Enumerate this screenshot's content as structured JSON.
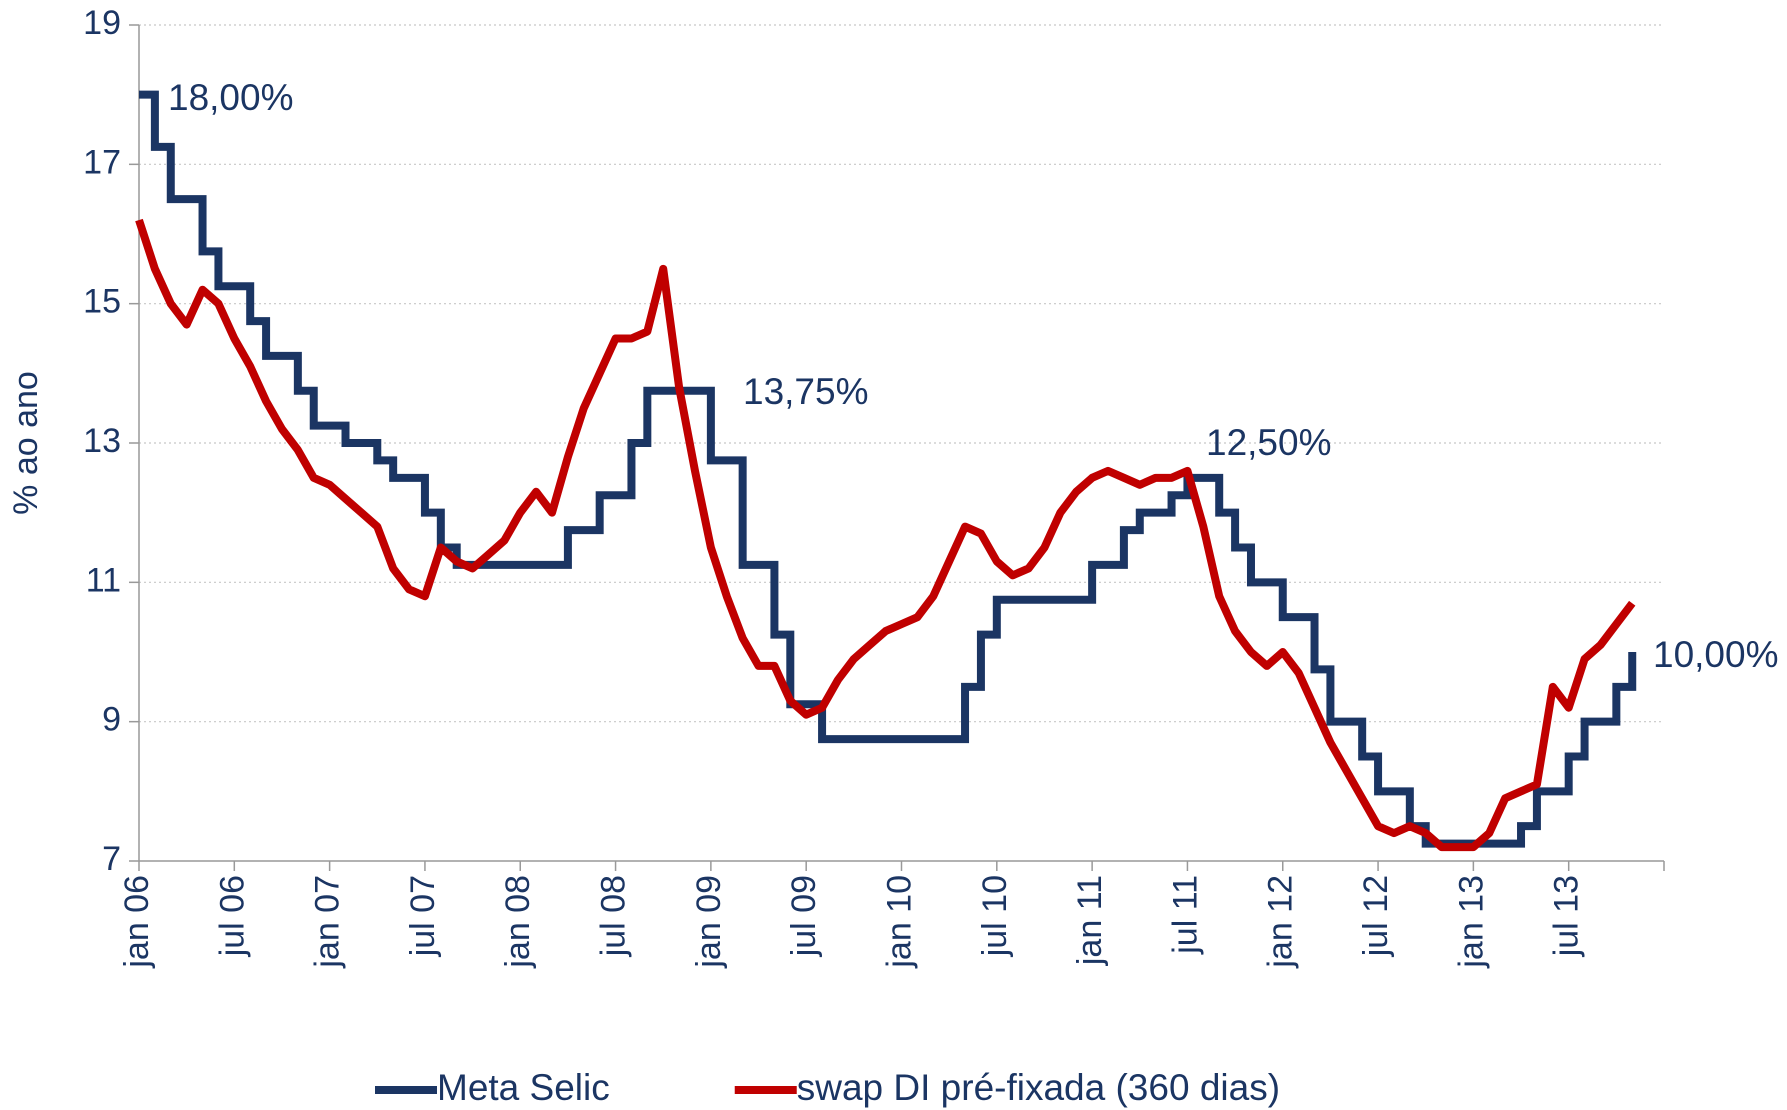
{
  "chart_data": {
    "type": "line",
    "y_label": "% ao ano",
    "categories": [
      "jan 06",
      null,
      null,
      null,
      null,
      null,
      "jul 06",
      null,
      null,
      null,
      null,
      null,
      "jan 07",
      null,
      null,
      null,
      null,
      null,
      "jul 07",
      null,
      null,
      null,
      null,
      null,
      "jan 08",
      null,
      null,
      null,
      null,
      null,
      "jul 08",
      null,
      null,
      null,
      null,
      null,
      "jan 09",
      null,
      null,
      null,
      null,
      null,
      "jul 09",
      null,
      null,
      null,
      null,
      null,
      "jan 10",
      null,
      null,
      null,
      null,
      null,
      "jul 10",
      null,
      null,
      null,
      null,
      null,
      "jan 11",
      null,
      null,
      null,
      null,
      null,
      "jul 11",
      null,
      null,
      null,
      null,
      null,
      "jan 12",
      null,
      null,
      null,
      null,
      null,
      "jul 12",
      null,
      null,
      null,
      null,
      null,
      "jan 13",
      null,
      null,
      null,
      null,
      null,
      "jul 13",
      null,
      null,
      null,
      null
    ],
    "series": [
      {
        "name": "Meta Selic",
        "color": "#1b3563",
        "step": true,
        "values": [
          18.0,
          17.25,
          16.5,
          16.5,
          15.75,
          15.25,
          15.25,
          14.75,
          14.25,
          14.25,
          13.75,
          13.25,
          13.25,
          13.0,
          13.0,
          12.75,
          12.5,
          12.5,
          12.0,
          11.5,
          11.25,
          11.25,
          11.25,
          11.25,
          11.25,
          11.25,
          11.25,
          11.75,
          11.75,
          12.25,
          12.25,
          13.0,
          13.75,
          13.75,
          13.75,
          13.75,
          12.75,
          12.75,
          11.25,
          11.25,
          10.25,
          9.25,
          9.25,
          8.75,
          8.75,
          8.75,
          8.75,
          8.75,
          8.75,
          8.75,
          8.75,
          8.75,
          9.5,
          10.25,
          10.75,
          10.75,
          10.75,
          10.75,
          10.75,
          10.75,
          11.25,
          11.25,
          11.75,
          12.0,
          12.0,
          12.25,
          12.5,
          12.5,
          12.0,
          11.5,
          11.0,
          11.0,
          10.5,
          10.5,
          9.75,
          9.0,
          9.0,
          8.5,
          8.0,
          8.0,
          7.5,
          7.25,
          7.25,
          7.25,
          7.25,
          7.25,
          7.25,
          7.5,
          8.0,
          8.0,
          8.5,
          9.0,
          9.0,
          9.5,
          10.0
        ]
      },
      {
        "name": "swap DI pré-fixada (360 dias)",
        "color": "#c00000",
        "step": false,
        "values": [
          16.2,
          15.5,
          15.0,
          14.7,
          15.2,
          15.0,
          14.5,
          14.1,
          13.6,
          13.2,
          12.9,
          12.5,
          12.4,
          12.2,
          12.0,
          11.8,
          11.2,
          10.9,
          10.8,
          11.5,
          11.3,
          11.2,
          11.4,
          11.6,
          12.0,
          12.3,
          12.0,
          12.8,
          13.5,
          14.0,
          14.5,
          14.5,
          14.6,
          15.5,
          13.8,
          12.6,
          11.5,
          10.8,
          10.2,
          9.8,
          9.8,
          9.3,
          9.1,
          9.2,
          9.6,
          9.9,
          10.1,
          10.3,
          10.4,
          10.5,
          10.8,
          11.3,
          11.8,
          11.7,
          11.3,
          11.1,
          11.2,
          11.5,
          12.0,
          12.3,
          12.5,
          12.6,
          12.5,
          12.4,
          12.5,
          12.5,
          12.6,
          11.8,
          10.8,
          10.3,
          10.0,
          9.8,
          10.0,
          9.7,
          9.2,
          8.7,
          8.3,
          7.9,
          7.5,
          7.4,
          7.5,
          7.4,
          7.2,
          7.2,
          7.2,
          7.4,
          7.9,
          8.0,
          8.1,
          9.5,
          9.2,
          9.9,
          10.1,
          10.4,
          10.7
        ]
      }
    ],
    "annotations": [
      "18,00%",
      "13,75%",
      "12,50%",
      "10,00%"
    ],
    "ylim": [
      7,
      19
    ],
    "yticks": [
      7,
      9,
      11,
      13,
      15,
      17,
      19
    ],
    "grid": true,
    "legend": "bottom"
  }
}
